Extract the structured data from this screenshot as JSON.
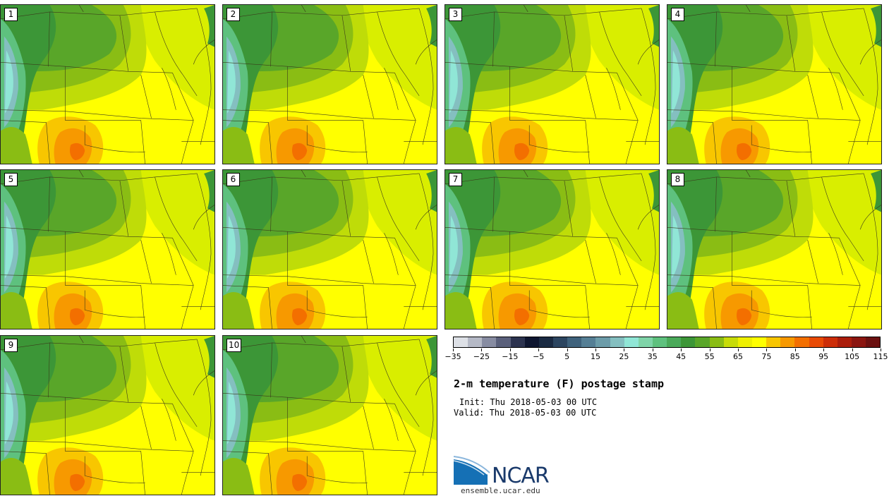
{
  "panels": [
    {
      "label": "1"
    },
    {
      "label": "2"
    },
    {
      "label": "3"
    },
    {
      "label": "4"
    },
    {
      "label": "5"
    },
    {
      "label": "6"
    },
    {
      "label": "7"
    },
    {
      "label": "8"
    },
    {
      "label": "9"
    },
    {
      "label": "10"
    }
  ],
  "colorbar": {
    "colors": [
      "#dde0e6",
      "#b5b9c6",
      "#878ca2",
      "#5a607b",
      "#2c334f",
      "#0e1630",
      "#1a2a42",
      "#2c4560",
      "#3f627c",
      "#557f95",
      "#6c9ca9",
      "#84bfc0",
      "#90e6d6",
      "#7fd4a8",
      "#5ec17e",
      "#4aaa5a",
      "#3c9637",
      "#59a629",
      "#8abd14",
      "#c7dc08",
      "#eef000",
      "#ffff00",
      "#f8c600",
      "#f79900",
      "#f36f00",
      "#e84a05",
      "#cc2d08",
      "#ab1d0b",
      "#8b1510",
      "#6b1010"
    ],
    "tick_labels": [
      "−35",
      "−25",
      "−15",
      "−5",
      "5",
      "15",
      "25",
      "35",
      "45",
      "55",
      "65",
      "75",
      "85",
      "95",
      "105",
      "115"
    ]
  },
  "title": "2-m temperature (F) postage stamp",
  "init_text": "Init: Thu 2018-05-03 00 UTC",
  "valid_text": "Valid: Thu 2018-05-03 00 UTC",
  "logo_text": "NCAR",
  "site_url": "ensemble.ucar.edu"
}
